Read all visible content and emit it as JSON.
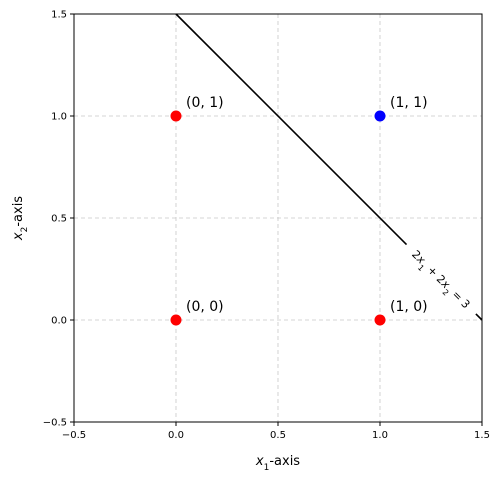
{
  "chart_data": {
    "type": "scatter",
    "title": "",
    "xlim": [
      -0.5,
      1.5
    ],
    "ylim": [
      -0.5,
      1.5
    ],
    "xticks": [
      -0.5,
      0.0,
      0.5,
      1.0,
      1.5
    ],
    "yticks": [
      -0.5,
      0.0,
      0.5,
      1.0,
      1.5
    ],
    "xtick_labels": [
      "−0.5",
      "0.0",
      "0.5",
      "1.0",
      "1.5"
    ],
    "ytick_labels": [
      "−0.5",
      "0.0",
      "0.5",
      "1.0",
      "1.5"
    ],
    "grid": true,
    "xlabel": {
      "var": "x",
      "sub": "1",
      "suffix": "-axis"
    },
    "ylabel": {
      "var": "x",
      "sub": "2",
      "suffix": "-axis"
    },
    "points": [
      {
        "x": 0,
        "y": 0,
        "label": "(0, 0)",
        "color": "#ff0000"
      },
      {
        "x": 0,
        "y": 1,
        "label": "(0, 1)",
        "color": "#ff0000"
      },
      {
        "x": 1,
        "y": 0,
        "label": "(1, 0)",
        "color": "#ff0000"
      },
      {
        "x": 1,
        "y": 1,
        "label": "(1, 1)",
        "color": "#0000ff"
      }
    ],
    "decision_line": {
      "equation": "2x1 + 2x2 = 3",
      "label_parts": [
        "2",
        "x",
        "1",
        " + 2",
        "x",
        "2",
        " = 3"
      ],
      "color": "#000000"
    }
  }
}
